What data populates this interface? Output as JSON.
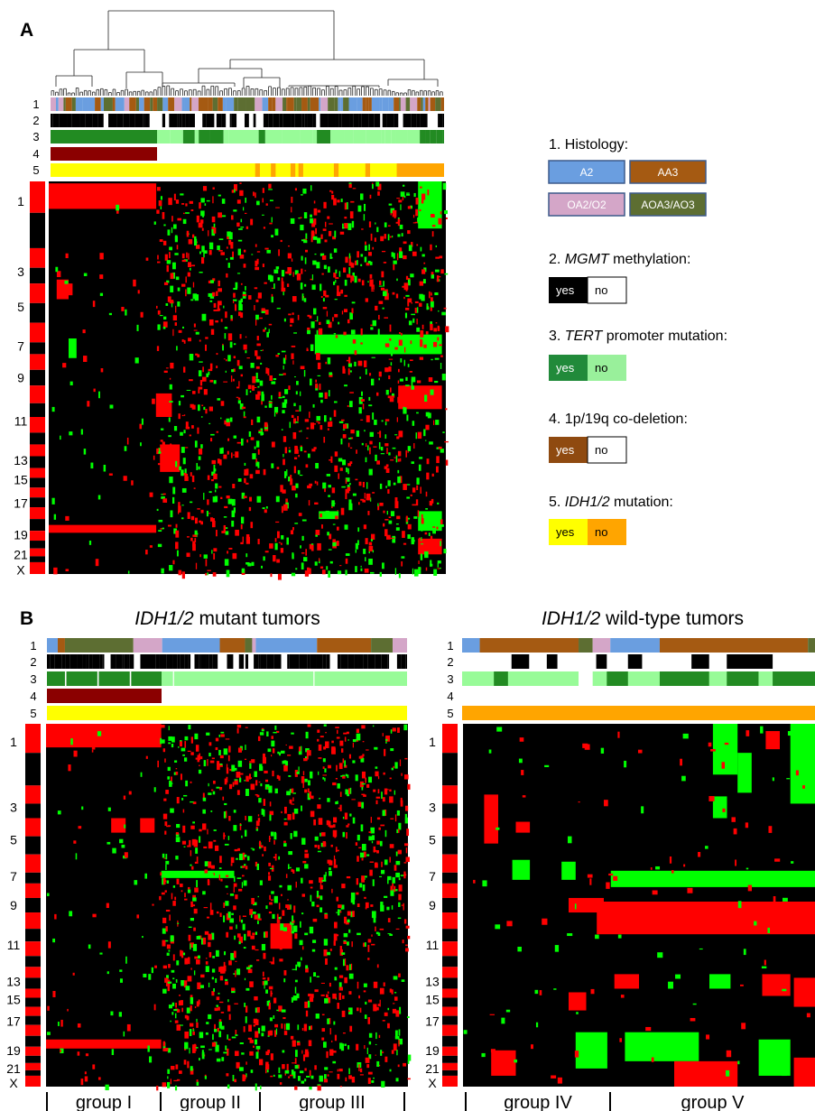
{
  "panels": {
    "A": {
      "letter": "A"
    },
    "B": {
      "letter": "B",
      "mutant_title_gene": "IDH1/2",
      "mutant_title_rest": " mutant tumors",
      "wildtype_title_gene": "IDH1/2",
      "wildtype_title_rest": " wild-type tumors"
    }
  },
  "annotation_rows": [
    "1",
    "2",
    "3",
    "4",
    "5"
  ],
  "chromosome_labels": [
    "1",
    "3",
    "5",
    "7",
    "9",
    "11",
    "13",
    "15",
    "17",
    "19",
    "21",
    "X"
  ],
  "groups": {
    "mutant": [
      "group I",
      "group II",
      "group III"
    ],
    "wildtype": [
      "group IV",
      "group V"
    ]
  },
  "legend": [
    {
      "num": "1. ",
      "gene": "",
      "rest": "Histology:",
      "items": [
        {
          "label": "A2",
          "color": "#6a9ee0",
          "text_color": "#ffffff"
        },
        {
          "label": "AA3",
          "color": "#a55a12",
          "text_color": "#ffffff"
        },
        {
          "label": "OA2/O2",
          "color": "#d4a6c8",
          "text_color": "#ffffff"
        },
        {
          "label": "AOA3/AO3",
          "color": "#5d6e32",
          "text_color": "#ffffff"
        }
      ]
    },
    {
      "num": "2. ",
      "gene": "MGMT",
      "rest": " methylation:",
      "items": [
        {
          "label": "yes",
          "color": "#000000",
          "text_color": "#ffffff"
        },
        {
          "label": "no",
          "color": "#ffffff",
          "text_color": "#000000"
        }
      ]
    },
    {
      "num": "3. ",
      "gene": "TERT",
      "rest": " promoter mutation:",
      "items": [
        {
          "label": "yes",
          "color": "#218a3a",
          "text_color": "#ffffff"
        },
        {
          "label": "no",
          "color": "#99f09b",
          "text_color": "#000000"
        }
      ]
    },
    {
      "num": "4. ",
      "gene": "",
      "rest": "1p/19q co-deletion:",
      "items": [
        {
          "label": "yes",
          "color": "#8f4a10",
          "text_color": "#ffffff"
        },
        {
          "label": "no",
          "color": "#ffffff",
          "text_color": "#000000"
        }
      ]
    },
    {
      "num": "5. ",
      "gene": "IDH1/2",
      "rest": " mutation:",
      "items": [
        {
          "label": "yes",
          "color": "#ffff00",
          "text_color": "#000000"
        },
        {
          "label": "no",
          "color": "#ffa500",
          "text_color": "#000000"
        }
      ]
    }
  ],
  "colors": {
    "gain": "#ff0000",
    "loss": "#00ff00",
    "neutral": "#000000",
    "chrom_odd": "#ff0000",
    "chrom_even": "#000000",
    "codeletion": "#8b0000",
    "idh_mutant": "#ffff00",
    "idh_wildtype": "#ffa500",
    "tert_yes": "#228b22",
    "tert_no": "#98fb98"
  },
  "chart_data": {
    "type": "heatmap",
    "rows": [
      "1",
      "3",
      "5",
      "7",
      "9",
      "11",
      "13",
      "15",
      "17",
      "19",
      "21",
      "X"
    ],
    "groups": [
      "group I",
      "group II",
      "group III",
      "group IV",
      "group V"
    ]
  }
}
